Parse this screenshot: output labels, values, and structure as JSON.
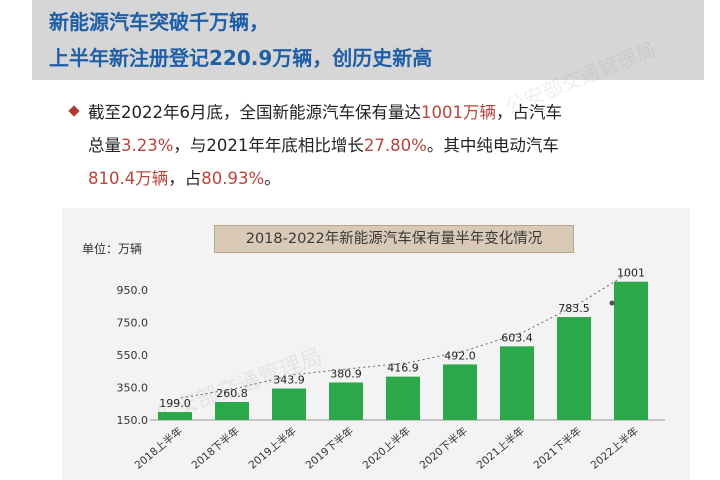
{
  "header": {
    "line1": "新能源汽车突破千万辆，",
    "line2": "上半年新注册登记220.9万辆，创历史新高"
  },
  "bullet": {
    "row1": {
      "t1": "截至2022年6月底，全国新能源汽车保有量达",
      "h1": "1001万辆",
      "t2": "，占汽车"
    },
    "row2": {
      "t1": "总量",
      "h1": "3.23%",
      "t2": "，与2021年年底相比增长",
      "h2": "27.80%",
      "t3": "。其中纯电动汽车"
    },
    "row3": {
      "h1": "810.4万辆",
      "t1": "，占",
      "h2": "80.93%",
      "t2": "。"
    }
  },
  "watermark": "公安部交通管理局",
  "colors": {
    "bar": "#2aa84a",
    "header_text": "#1f5fa8",
    "highlight": "#b8443c",
    "title_box": "#d9c9b6"
  },
  "chart_data": {
    "type": "bar",
    "title": "2018-2022年新能源汽车保有量半年变化情况",
    "unit_label": "单位：万辆",
    "categories": [
      "2018上半年",
      "2018下半年",
      "2019上半年",
      "2019下半年",
      "2020上半年",
      "2020下半年",
      "2021上半年",
      "2021下半年",
      "2022上半年"
    ],
    "values": [
      199.0,
      260.8,
      343.9,
      380.9,
      416.9,
      492.0,
      603.4,
      783.5,
      1001
    ],
    "value_labels": [
      "199.0",
      "260.8",
      "343.9",
      "380.9",
      "416.9",
      "492.0",
      "603.4",
      "783.5",
      "1001"
    ],
    "y_ticks": [
      "150.0",
      "350.0",
      "550.0",
      "750.0",
      "950.0"
    ],
    "ylim": [
      150,
      1050
    ],
    "trendline": "dotted",
    "grid": false
  }
}
